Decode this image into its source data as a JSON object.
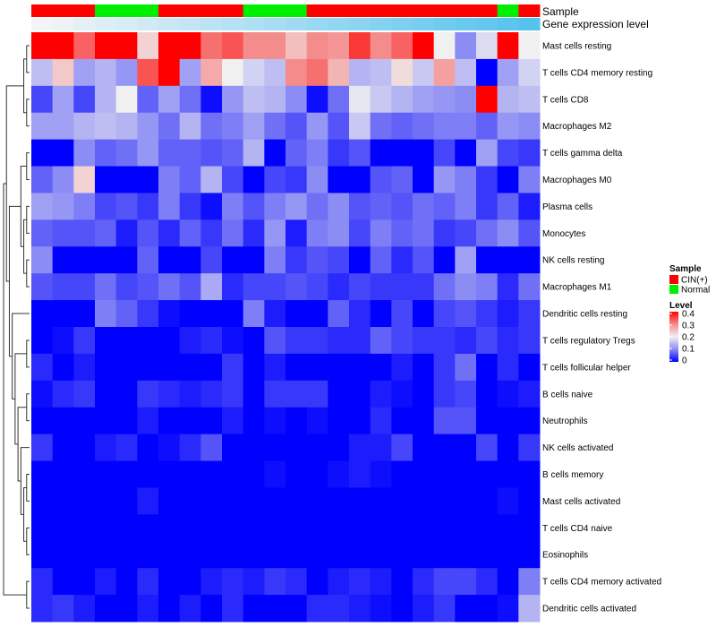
{
  "chart_data": {
    "type": "heatmap",
    "title": "",
    "n_columns": 24,
    "annotations": {
      "sample": {
        "label": "Sample",
        "values": [
          "CIN(+)",
          "CIN(+)",
          "CIN(+)",
          "Normal",
          "Normal",
          "Normal",
          "CIN(+)",
          "CIN(+)",
          "CIN(+)",
          "CIN(+)",
          "Normal",
          "Normal",
          "Normal",
          "CIN(+)",
          "CIN(+)",
          "CIN(+)",
          "CIN(+)",
          "CIN(+)",
          "CIN(+)",
          "CIN(+)",
          "CIN(+)",
          "CIN(+)",
          "Normal",
          "CIN(+)"
        ]
      },
      "gene_expression": {
        "label": "Gene expression level",
        "values": [
          0.0,
          0.04,
          0.09,
          0.13,
          0.17,
          0.22,
          0.26,
          0.3,
          0.35,
          0.39,
          0.43,
          0.48,
          0.52,
          0.57,
          0.61,
          0.65,
          0.7,
          0.74,
          0.78,
          0.83,
          0.87,
          0.91,
          0.96,
          1.0
        ],
        "low_color": "#f2f4f6",
        "high_color": "#56c3ee"
      }
    },
    "rows": [
      {
        "name": "Mast cells resting",
        "values": [
          0.4,
          0.4,
          0.33,
          0.4,
          0.4,
          0.23,
          0.4,
          0.4,
          0.32,
          0.34,
          0.3,
          0.3,
          0.25,
          0.3,
          0.29,
          0.36,
          0.3,
          0.33,
          0.4,
          0.2,
          0.1,
          0.18,
          0.4,
          0.2
        ]
      },
      {
        "name": "T cells CD4 memory resting",
        "values": [
          0.15,
          0.24,
          0.12,
          0.14,
          0.11,
          0.34,
          0.4,
          0.12,
          0.27,
          0.2,
          0.17,
          0.15,
          0.3,
          0.32,
          0.26,
          0.14,
          0.15,
          0.22,
          0.16,
          0.28,
          0.15,
          0.0,
          0.12,
          0.17
        ]
      },
      {
        "name": "T cells CD8",
        "values": [
          0.05,
          0.12,
          0.05,
          0.14,
          0.2,
          0.07,
          0.12,
          0.08,
          0.01,
          0.11,
          0.15,
          0.14,
          0.1,
          0.01,
          0.08,
          0.19,
          0.16,
          0.14,
          0.12,
          0.11,
          0.1,
          0.4,
          0.14,
          0.15
        ]
      },
      {
        "name": "Macrophages M2",
        "values": [
          0.12,
          0.12,
          0.14,
          0.15,
          0.14,
          0.11,
          0.08,
          0.14,
          0.08,
          0.09,
          0.12,
          0.08,
          0.06,
          0.11,
          0.06,
          0.16,
          0.08,
          0.07,
          0.08,
          0.09,
          0.09,
          0.07,
          0.11,
          0.1
        ]
      },
      {
        "name": "T cells gamma delta",
        "values": [
          0.0,
          0.0,
          0.1,
          0.07,
          0.08,
          0.11,
          0.07,
          0.07,
          0.06,
          0.07,
          0.14,
          0.0,
          0.07,
          0.09,
          0.04,
          0.06,
          0.0,
          0.0,
          0.0,
          0.05,
          0.0,
          0.12,
          0.05,
          0.04
        ]
      },
      {
        "name": "Macrophages M0",
        "values": [
          0.07,
          0.1,
          0.23,
          0.0,
          0.0,
          0.0,
          0.09,
          0.07,
          0.14,
          0.05,
          0.0,
          0.05,
          0.04,
          0.1,
          0.0,
          0.0,
          0.06,
          0.07,
          0.0,
          0.11,
          0.09,
          0.04,
          0.0,
          0.09
        ]
      },
      {
        "name": "Plasma cells",
        "values": [
          0.12,
          0.11,
          0.09,
          0.05,
          0.06,
          0.04,
          0.09,
          0.04,
          0.01,
          0.09,
          0.06,
          0.09,
          0.11,
          0.08,
          0.1,
          0.06,
          0.07,
          0.06,
          0.08,
          0.07,
          0.09,
          0.04,
          0.07,
          0.02
        ]
      },
      {
        "name": "Monocytes",
        "values": [
          0.07,
          0.06,
          0.06,
          0.07,
          0.02,
          0.06,
          0.03,
          0.07,
          0.04,
          0.08,
          0.03,
          0.11,
          0.02,
          0.09,
          0.1,
          0.05,
          0.09,
          0.07,
          0.08,
          0.04,
          0.05,
          0.08,
          0.1,
          0.06
        ]
      },
      {
        "name": "NK cells resting",
        "values": [
          0.1,
          0.0,
          0.0,
          0.0,
          0.0,
          0.07,
          0.0,
          0.0,
          0.05,
          0.0,
          0.0,
          0.09,
          0.04,
          0.06,
          0.05,
          0.0,
          0.07,
          0.03,
          0.06,
          0.0,
          0.12,
          0.0,
          0.0,
          0.0
        ]
      },
      {
        "name": "Macrophages M1",
        "values": [
          0.06,
          0.05,
          0.05,
          0.08,
          0.05,
          0.06,
          0.08,
          0.06,
          0.13,
          0.03,
          0.05,
          0.05,
          0.06,
          0.05,
          0.03,
          0.05,
          0.04,
          0.04,
          0.04,
          0.08,
          0.1,
          0.09,
          0.03,
          0.08
        ]
      },
      {
        "name": "Dendritic cells resting",
        "values": [
          0.0,
          0.0,
          0.0,
          0.09,
          0.07,
          0.04,
          0.01,
          0.0,
          0.0,
          0.0,
          0.09,
          0.02,
          0.0,
          0.0,
          0.07,
          0.03,
          0.0,
          0.05,
          0.0,
          0.05,
          0.06,
          0.04,
          0.02,
          0.04
        ]
      },
      {
        "name": "T cells regulatory  Tregs",
        "values": [
          0.0,
          0.01,
          0.04,
          0.0,
          0.0,
          0.0,
          0.0,
          0.02,
          0.03,
          0.01,
          0.0,
          0.06,
          0.04,
          0.04,
          0.03,
          0.03,
          0.07,
          0.05,
          0.04,
          0.04,
          0.03,
          0.05,
          0.03,
          0.04
        ]
      },
      {
        "name": "T cells follicular helper",
        "values": [
          0.03,
          0.0,
          0.02,
          0.0,
          0.0,
          0.0,
          0.0,
          0.0,
          0.0,
          0.04,
          0.0,
          0.02,
          0.0,
          0.0,
          0.0,
          0.0,
          0.0,
          0.02,
          0.0,
          0.04,
          0.08,
          0.0,
          0.03,
          0.0
        ]
      },
      {
        "name": "B cells naive",
        "values": [
          0.01,
          0.03,
          0.04,
          0.0,
          0.0,
          0.04,
          0.03,
          0.02,
          0.03,
          0.04,
          0.0,
          0.04,
          0.04,
          0.04,
          0.0,
          0.0,
          0.02,
          0.01,
          0.0,
          0.04,
          0.05,
          0.0,
          0.01,
          0.02
        ]
      },
      {
        "name": "Neutrophils",
        "values": [
          0.0,
          0.0,
          0.0,
          0.0,
          0.0,
          0.02,
          0.0,
          0.0,
          0.0,
          0.02,
          0.0,
          0.01,
          0.0,
          0.01,
          0.0,
          0.0,
          0.03,
          0.0,
          0.0,
          0.06,
          0.06,
          0.0,
          0.0,
          0.0
        ]
      },
      {
        "name": "NK cells activated",
        "values": [
          0.04,
          0.0,
          0.0,
          0.02,
          0.03,
          0.0,
          0.01,
          0.03,
          0.06,
          0.0,
          0.0,
          0.0,
          0.0,
          0.0,
          0.0,
          0.02,
          0.02,
          0.05,
          0.0,
          0.0,
          0.0,
          0.05,
          0.0,
          0.04
        ]
      },
      {
        "name": "B cells memory",
        "values": [
          0.0,
          0.0,
          0.0,
          0.0,
          0.0,
          0.0,
          0.0,
          0.0,
          0.0,
          0.0,
          0.0,
          0.01,
          0.0,
          0.0,
          0.01,
          0.02,
          0.01,
          0.0,
          0.0,
          0.0,
          0.0,
          0.0,
          0.0,
          0.0
        ]
      },
      {
        "name": "Mast cells activated",
        "values": [
          0.0,
          0.0,
          0.0,
          0.0,
          0.0,
          0.02,
          0.0,
          0.0,
          0.0,
          0.0,
          0.0,
          0.0,
          0.0,
          0.0,
          0.0,
          0.0,
          0.0,
          0.0,
          0.0,
          0.0,
          0.0,
          0.0,
          0.01,
          0.0
        ]
      },
      {
        "name": "T cells CD4 naive",
        "values": [
          0.0,
          0.0,
          0.0,
          0.0,
          0.0,
          0.0,
          0.0,
          0.0,
          0.0,
          0.0,
          0.0,
          0.0,
          0.0,
          0.0,
          0.0,
          0.0,
          0.0,
          0.0,
          0.0,
          0.0,
          0.0,
          0.0,
          0.0,
          0.0
        ]
      },
      {
        "name": "Eosinophils",
        "values": [
          0.0,
          0.0,
          0.0,
          0.0,
          0.0,
          0.0,
          0.0,
          0.0,
          0.0,
          0.0,
          0.0,
          0.0,
          0.0,
          0.0,
          0.0,
          0.0,
          0.0,
          0.0,
          0.0,
          0.0,
          0.0,
          0.0,
          0.0,
          0.0
        ]
      },
      {
        "name": "T cells CD4 memory activated",
        "values": [
          0.03,
          0.0,
          0.0,
          0.02,
          0.0,
          0.03,
          0.0,
          0.0,
          0.02,
          0.03,
          0.02,
          0.04,
          0.03,
          0.0,
          0.02,
          0.03,
          0.02,
          0.0,
          0.03,
          0.05,
          0.05,
          0.03,
          0.0,
          0.09
        ]
      },
      {
        "name": "Dendritic cells activated",
        "values": [
          0.03,
          0.04,
          0.02,
          0.0,
          0.0,
          0.02,
          0.0,
          0.02,
          0.0,
          0.03,
          0.0,
          0.0,
          0.0,
          0.03,
          0.03,
          0.02,
          0.01,
          0.0,
          0.02,
          0.04,
          0.0,
          0.0,
          0.01,
          0.14
        ]
      }
    ],
    "dendrogram_order": [
      [
        [
          [
            "0",
            "1"
          ],
          [
            "2",
            "3"
          ]
        ],
        [
          [
            [
              "4",
              "5"
            ],
            [
              [
                "6",
                "7"
              ],
              [
                "8",
                "9"
              ]
            ]
          ],
          [
            "10",
            [
              [
                "11",
                "12"
              ],
              [
                [
                  "13",
                  "14"
                ],
                [
                  "15",
                  [
                    [
                      "16",
                      "17"
                    ],
                    [
                      "18",
                      "19"
                    ]
                  ]
                ]
              ]
            ]
          ]
        ]
      ],
      [
        "20",
        "21"
      ]
    ],
    "color_scale": {
      "title": "Level",
      "min": 0,
      "max": 0.4,
      "ticks": [
        0.4,
        0.3,
        0.2,
        0.1,
        0
      ],
      "stops": [
        {
          "v": 0.0,
          "color": "#0000ff"
        },
        {
          "v": 0.1,
          "color": "#8c8cf5"
        },
        {
          "v": 0.2,
          "color": "#f0f0f0"
        },
        {
          "v": 0.3,
          "color": "#f58c8c"
        },
        {
          "v": 0.4,
          "color": "#ff0000"
        }
      ]
    },
    "legend": {
      "title": "Sample",
      "placement": "right",
      "items": [
        {
          "label": "CIN(+)",
          "color": "#ff0000"
        },
        {
          "label": "Normal",
          "color": "#00ee00"
        }
      ]
    }
  }
}
